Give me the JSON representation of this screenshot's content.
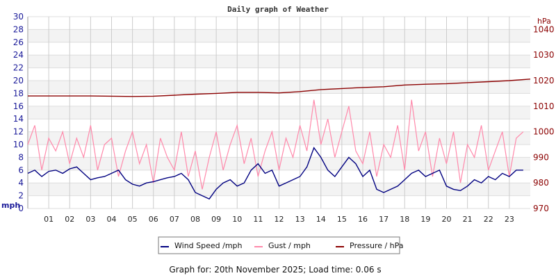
{
  "chart_data": {
    "type": "line",
    "title": "Daily graph of Weather",
    "left_axis": {
      "unit": "mph",
      "ylim": [
        0,
        30
      ],
      "ticks": [
        0,
        2,
        4,
        6,
        8,
        10,
        12,
        14,
        16,
        18,
        20,
        22,
        24,
        26,
        28,
        30
      ],
      "color": "#1a1a99"
    },
    "right_axis": {
      "unit": "hPa",
      "ylim": [
        970,
        1045
      ],
      "ticks": [
        970,
        980,
        990,
        1000,
        1010,
        1020,
        1030,
        1040
      ],
      "color": "#8b0000"
    },
    "x_ticks": [
      "01",
      "02",
      "03",
      "04",
      "05",
      "06",
      "07",
      "08",
      "09",
      "10",
      "11",
      "12",
      "13",
      "14",
      "15",
      "16",
      "17",
      "18",
      "19",
      "20",
      "21",
      "22",
      "23"
    ],
    "xlim_hours": [
      0,
      24
    ],
    "grid": true,
    "legend_placement": "bottom",
    "series": [
      {
        "name": "Wind Speed /mph",
        "color": "#000080",
        "axis": "left",
        "step_hours": 0.3333,
        "values": [
          5.5,
          6,
          5,
          5.8,
          6,
          5.5,
          6.2,
          6.5,
          5.5,
          4.5,
          4.8,
          5,
          5.5,
          6,
          4.5,
          3.8,
          3.5,
          4,
          4.2,
          4.5,
          4.8,
          5,
          5.5,
          4.5,
          2.5,
          2,
          1.5,
          3,
          4,
          4.5,
          3.5,
          4,
          6,
          7,
          5.5,
          6,
          3.5,
          4,
          4.5,
          5,
          6.5,
          9.5,
          8,
          6,
          5,
          6.5,
          8,
          7,
          5,
          6,
          3,
          2.5,
          3,
          3.5,
          4.5,
          5.5,
          6,
          5,
          5.5,
          6,
          3.5,
          3,
          2.8,
          3.5,
          4.5,
          4,
          5,
          4.5,
          5.5,
          5,
          6,
          6
        ]
      },
      {
        "name": "Gust / mph",
        "color": "#ff88aa",
        "axis": "left",
        "step_hours": 0.3333,
        "values": [
          10,
          13,
          6,
          11,
          9,
          12,
          7,
          11,
          8,
          13,
          6,
          10,
          11,
          5,
          9,
          12,
          7,
          10,
          4,
          11,
          8,
          6,
          12,
          5,
          9,
          3,
          8,
          12,
          6,
          10,
          13,
          7,
          11,
          5,
          9,
          12,
          6,
          11,
          8,
          13,
          9,
          17,
          10,
          14,
          8,
          12,
          16,
          9,
          7,
          12,
          5,
          10,
          8,
          13,
          6,
          17,
          9,
          12,
          5,
          11,
          7,
          12,
          4,
          10,
          8,
          13,
          6,
          9,
          12,
          5,
          11,
          12
        ]
      },
      {
        "name": "Pressure / hPa",
        "color": "#8b0000",
        "axis": "right",
        "step_hours": 1,
        "values": [
          1014.0,
          1014.0,
          1014.0,
          1014.0,
          1013.9,
          1013.8,
          1013.9,
          1014.3,
          1014.7,
          1015.0,
          1015.4,
          1015.4,
          1015.2,
          1015.7,
          1016.5,
          1016.9,
          1017.3,
          1017.6,
          1018.3,
          1018.6,
          1018.8,
          1019.2,
          1019.6,
          1020.0,
          1020.6
        ]
      }
    ]
  },
  "footer": "Graph for: 20th November 2025; Load time: 0.06 s"
}
